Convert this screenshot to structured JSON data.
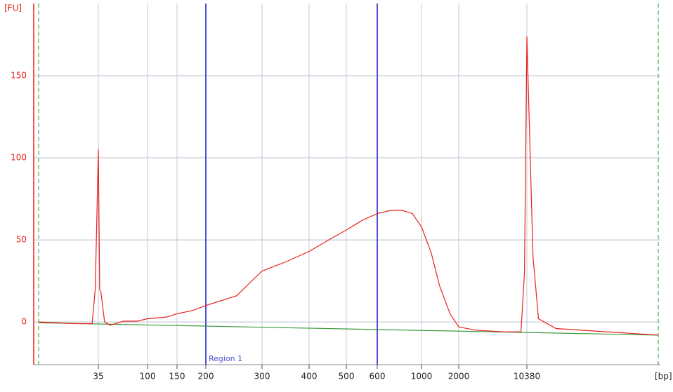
{
  "chart_data": {
    "type": "line",
    "y_label": "[FU]",
    "x_label": "[bp]",
    "xlim": [
      20,
      20000
    ],
    "xticks": [
      35,
      100,
      150,
      200,
      300,
      400,
      500,
      600,
      1000,
      2000,
      10380
    ],
    "ylim": [
      -26,
      194
    ],
    "yticks": [
      0,
      50,
      100,
      150
    ],
    "grid": true,
    "regions": [
      {
        "label": "Region 1",
        "start": 200,
        "end": 600,
        "color": "#4f4fd8"
      }
    ],
    "series": [
      {
        "color": "#e8201c",
        "x": [
          20,
          28,
          33,
          34,
          35,
          36,
          37,
          40,
          45,
          60,
          80,
          100,
          130,
          150,
          175,
          200,
          250,
          275,
          300,
          350,
          400,
          450,
          500,
          550,
          600,
          700,
          800,
          900,
          1000,
          1200,
          1400,
          1700,
          2000,
          3000,
          6000,
          9000,
          9800,
          10380,
          10700,
          11000,
          12000,
          20000
        ],
        "values": [
          0,
          -1,
          -1,
          20,
          105,
          20,
          18,
          0,
          -2,
          0.5,
          0.5,
          2,
          3,
          5,
          7,
          10,
          16,
          24,
          31,
          37,
          43,
          50,
          56,
          62,
          66,
          68,
          68,
          66,
          58,
          42,
          22,
          5,
          -3,
          -5,
          -6,
          -6,
          30,
          174,
          40,
          2,
          -4,
          -8
        ]
      },
      {
        "color": "#3a9a3a",
        "x": [
          20,
          20000
        ],
        "values": [
          -0.5,
          -8
        ]
      }
    ]
  }
}
